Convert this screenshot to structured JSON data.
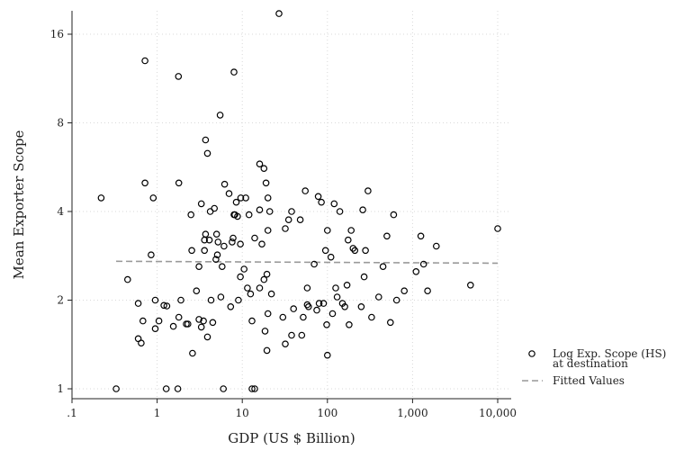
{
  "chart_data": {
    "type": "scatter",
    "xlabel": "GDP (US $ Billion)",
    "ylabel": "Mean Exporter Scope",
    "x_scale": "log10",
    "y_scale": "log2",
    "xlim": [
      0.1,
      10000
    ],
    "ylim": [
      1,
      19
    ],
    "x_ticks": [
      {
        "value": 0.1,
        "label": ".1"
      },
      {
        "value": 1,
        "label": "1"
      },
      {
        "value": 10,
        "label": "10"
      },
      {
        "value": 100,
        "label": "100"
      },
      {
        "value": 1000,
        "label": "1,000"
      },
      {
        "value": 10000,
        "label": "10,000"
      }
    ],
    "y_ticks": [
      {
        "value": 1,
        "label": "1"
      },
      {
        "value": 2,
        "label": "2"
      },
      {
        "value": 4,
        "label": "4"
      },
      {
        "value": 8,
        "label": "8"
      },
      {
        "value": 16,
        "label": "16"
      }
    ],
    "grid": true,
    "legend_position": "right",
    "series": [
      {
        "name": "Log Exp. Scope (HS) at destination",
        "legend_lines": [
          "Log Exp. Scope (HS)",
          "at destination"
        ],
        "kind": "markers",
        "marker": "hollow-circle",
        "points": [
          [
            0.22,
            4.45
          ],
          [
            0.33,
            1.0
          ],
          [
            0.45,
            2.35
          ],
          [
            0.6,
            1.95
          ],
          [
            0.6,
            1.48
          ],
          [
            0.65,
            1.43
          ],
          [
            0.68,
            1.7
          ],
          [
            0.72,
            13.0
          ],
          [
            0.72,
            5.0
          ],
          [
            0.85,
            2.85
          ],
          [
            0.9,
            4.45
          ],
          [
            0.95,
            2.0
          ],
          [
            0.95,
            1.6
          ],
          [
            1.05,
            1.7
          ],
          [
            1.2,
            1.92
          ],
          [
            1.28,
            1.0
          ],
          [
            1.3,
            1.91
          ],
          [
            1.55,
            1.63
          ],
          [
            1.75,
            1.0
          ],
          [
            1.78,
            11.5
          ],
          [
            1.8,
            1.75
          ],
          [
            1.8,
            5.0
          ],
          [
            1.9,
            2.0
          ],
          [
            2.2,
            1.66
          ],
          [
            2.3,
            1.66
          ],
          [
            2.5,
            3.9
          ],
          [
            2.55,
            2.95
          ],
          [
            2.6,
            1.32
          ],
          [
            2.9,
            2.15
          ],
          [
            3.1,
            1.72
          ],
          [
            3.1,
            2.6
          ],
          [
            3.3,
            4.25
          ],
          [
            3.3,
            1.62
          ],
          [
            3.5,
            1.7
          ],
          [
            3.6,
            2.95
          ],
          [
            3.6,
            3.2
          ],
          [
            3.7,
            3.35
          ],
          [
            3.7,
            7.0
          ],
          [
            3.9,
            6.3
          ],
          [
            3.9,
            1.5
          ],
          [
            4.1,
            3.2
          ],
          [
            4.2,
            4.0
          ],
          [
            4.3,
            2.0
          ],
          [
            4.5,
            1.68
          ],
          [
            4.7,
            4.1
          ],
          [
            4.9,
            2.75
          ],
          [
            5.0,
            3.35
          ],
          [
            5.1,
            2.85
          ],
          [
            5.2,
            3.15
          ],
          [
            5.5,
            8.5
          ],
          [
            5.6,
            2.05
          ],
          [
            5.8,
            2.6
          ],
          [
            6.0,
            1.0
          ],
          [
            6.1,
            3.05
          ],
          [
            6.2,
            4.95
          ],
          [
            7.0,
            4.6
          ],
          [
            7.3,
            1.9
          ],
          [
            7.6,
            3.15
          ],
          [
            7.8,
            3.25
          ],
          [
            8.0,
            11.9
          ],
          [
            8.0,
            3.9
          ],
          [
            8.2,
            3.9
          ],
          [
            8.5,
            4.3
          ],
          [
            8.8,
            3.85
          ],
          [
            9.0,
            2.0
          ],
          [
            9.5,
            2.4
          ],
          [
            9.5,
            3.1
          ],
          [
            9.6,
            4.45
          ],
          [
            10.5,
            2.55
          ],
          [
            11.0,
            4.45
          ],
          [
            11.5,
            2.2
          ],
          [
            12.0,
            3.9
          ],
          [
            12.5,
            2.1
          ],
          [
            13.0,
            1.0
          ],
          [
            13.0,
            1.7
          ],
          [
            14.0,
            3.25
          ],
          [
            14.0,
            1.0
          ],
          [
            16.0,
            2.2
          ],
          [
            16.0,
            4.05
          ],
          [
            16.0,
            5.8
          ],
          [
            17.0,
            3.1
          ],
          [
            18.0,
            5.6
          ],
          [
            18.0,
            2.35
          ],
          [
            18.5,
            1.57
          ],
          [
            19.0,
            5.0
          ],
          [
            19.5,
            1.35
          ],
          [
            19.5,
            2.45
          ],
          [
            20.0,
            4.45
          ],
          [
            20.0,
            1.8
          ],
          [
            20.0,
            3.45
          ],
          [
            21.0,
            4.0
          ],
          [
            22.0,
            2.1
          ],
          [
            27.0,
            18.8
          ],
          [
            30.0,
            1.75
          ],
          [
            32.0,
            1.42
          ],
          [
            32.0,
            3.5
          ],
          [
            35.0,
            3.75
          ],
          [
            38.0,
            1.52
          ],
          [
            38.0,
            4.0
          ],
          [
            40.0,
            1.87
          ],
          [
            48.0,
            3.75
          ],
          [
            50.0,
            1.52
          ],
          [
            52.0,
            1.75
          ],
          [
            55.0,
            4.7
          ],
          [
            58.0,
            1.93
          ],
          [
            58.0,
            2.2
          ],
          [
            60.0,
            1.9
          ],
          [
            70.0,
            2.65
          ],
          [
            75.0,
            1.85
          ],
          [
            78.0,
            4.5
          ],
          [
            80.0,
            1.95
          ],
          [
            85.0,
            4.3
          ],
          [
            90.0,
            1.95
          ],
          [
            95.0,
            2.95
          ],
          [
            98.0,
            1.65
          ],
          [
            100.0,
            1.3
          ],
          [
            100.0,
            3.45
          ],
          [
            110.0,
            2.8
          ],
          [
            115.0,
            1.8
          ],
          [
            120.0,
            4.25
          ],
          [
            125.0,
            2.2
          ],
          [
            130.0,
            2.05
          ],
          [
            140.0,
            4.0
          ],
          [
            150.0,
            1.95
          ],
          [
            160.0,
            1.9
          ],
          [
            170.0,
            2.25
          ],
          [
            175.0,
            3.2
          ],
          [
            180.0,
            1.65
          ],
          [
            190.0,
            3.45
          ],
          [
            200.0,
            3.0
          ],
          [
            210.0,
            2.95
          ],
          [
            250.0,
            1.9
          ],
          [
            260.0,
            4.05
          ],
          [
            270.0,
            2.4
          ],
          [
            280.0,
            2.95
          ],
          [
            300.0,
            4.7
          ],
          [
            330.0,
            1.75
          ],
          [
            400.0,
            2.05
          ],
          [
            450.0,
            2.6
          ],
          [
            500.0,
            3.3
          ],
          [
            550.0,
            1.68
          ],
          [
            600.0,
            3.9
          ],
          [
            650.0,
            2.0
          ],
          [
            800.0,
            2.15
          ],
          [
            1100.0,
            2.5
          ],
          [
            1250.0,
            3.3
          ],
          [
            1350.0,
            2.65
          ],
          [
            1500.0,
            2.15
          ],
          [
            1900.0,
            3.05
          ],
          [
            4800.0,
            2.25
          ],
          [
            10000.0,
            3.5
          ]
        ]
      },
      {
        "name": "Fitted Values",
        "legend_lines": [
          "Fitted Values"
        ],
        "kind": "line",
        "style": "dashed",
        "points": [
          [
            0.33,
            2.71
          ],
          [
            10000.0,
            2.67
          ]
        ]
      }
    ]
  },
  "colors": {
    "marker_stroke": "#000000",
    "fit_line": "#999999",
    "grid": "#d9d9d9",
    "axis": "#222222",
    "background": "#ffffff"
  }
}
